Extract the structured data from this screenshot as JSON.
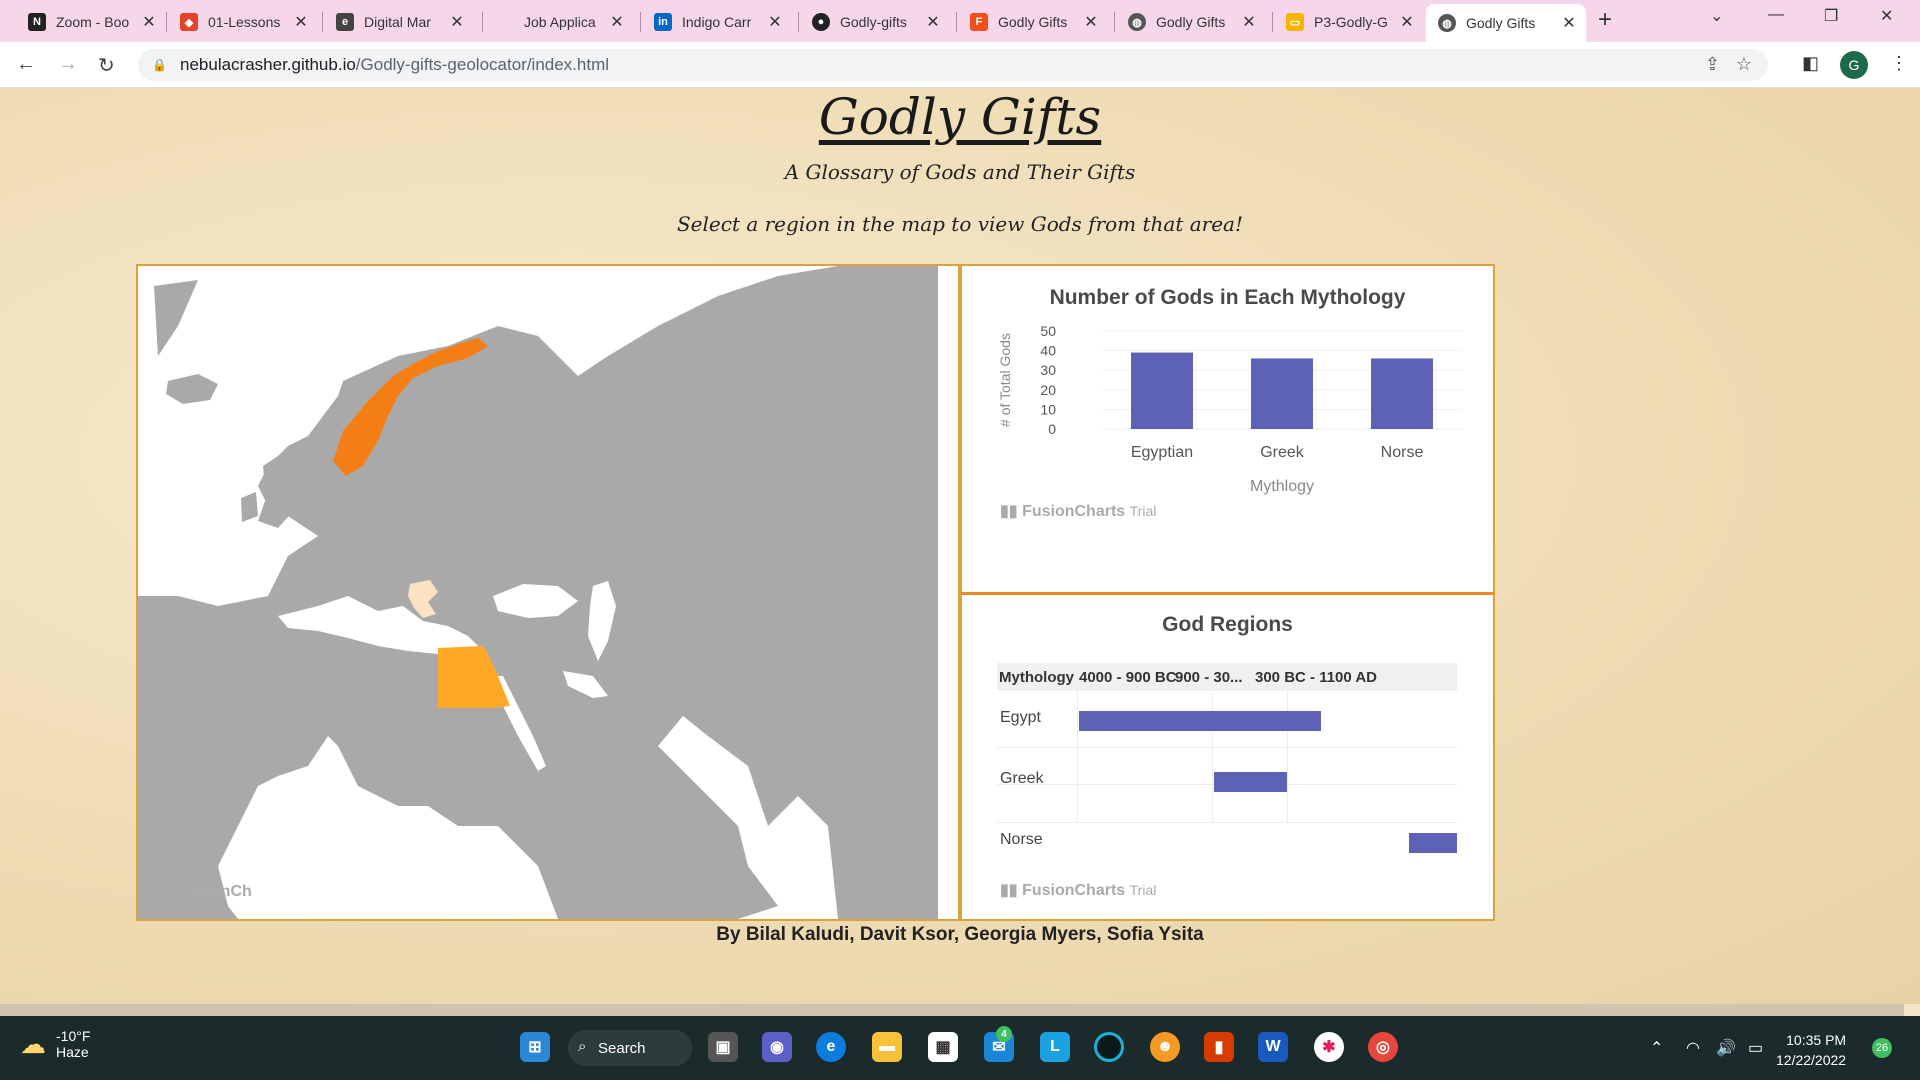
{
  "browser": {
    "tabs": [
      {
        "title": "Zoom - Boo",
        "icon": "notion-icon",
        "color": "#222222"
      },
      {
        "title": "01-Lessons",
        "icon": "gitlab-icon",
        "color": "#e24329"
      },
      {
        "title": "Digital Mar",
        "icon": "edx-icon",
        "color": "#444444"
      },
      {
        "title": "Job Applica",
        "icon": "blank-page-icon",
        "color": "#bbbbbb"
      },
      {
        "title": "Indigo Carr",
        "icon": "linkedin-icon",
        "color": "#0a66c2"
      },
      {
        "title": "Godly-gifts",
        "icon": "github-icon",
        "color": "#222222"
      },
      {
        "title": "Godly Gifts",
        "icon": "figma-icon",
        "color": "#f24e1e"
      },
      {
        "title": "Godly Gifts",
        "icon": "globe-icon",
        "color": "#555555"
      },
      {
        "title": "P3-Godly-G",
        "icon": "google-slides-icon",
        "color": "#f4b400"
      },
      {
        "title": "Godly Gifts",
        "icon": "globe-icon",
        "color": "#555555"
      }
    ],
    "active_tab_index": 9,
    "url_host": "nebulacrasher.github.io",
    "url_path": "/Godly-gifts-geolocator/index.html",
    "profile_initial": "G"
  },
  "page": {
    "title": "Godly Gifts",
    "subtitle": "A Glossary of Gods and Their Gifts",
    "instruction": "Select a region in the map to view Gods from that area!",
    "map_logo": "FusionCh",
    "credits": "By Bilal Kaludi, Davit Ksor, Georgia Myers, Sofia Ysita"
  },
  "chart_data": [
    {
      "type": "bar",
      "title": "Number of Gods in Each Mythology",
      "categories": [
        "Egyptian",
        "Greek",
        "Norse"
      ],
      "values": [
        39,
        36,
        36
      ],
      "xlabel": "Mythlogy",
      "ylabel": "# of Total Gods",
      "ylim": [
        0,
        50
      ],
      "yticks": [
        0,
        10,
        20,
        30,
        40,
        50
      ],
      "color": "#5d62b5",
      "logo": "FusionCharts",
      "logo_suffix": "Trial"
    }
  ],
  "gantt": {
    "title": "God Regions",
    "header_label": "Mythology",
    "periods": [
      "4000 - 900 BC",
      "900 - 30...",
      "300 BC - 1100 AD"
    ],
    "rows": [
      {
        "label": "Egypt"
      },
      {
        "label": "Greek"
      },
      {
        "label": "Norse"
      }
    ],
    "color": "#5d62b5",
    "logo": "FusionCharts",
    "logo_suffix": "Trial"
  },
  "map": {
    "highlight_norway": "#f57f17",
    "highlight_egypt": "#ffa726",
    "highlight_greece": "#fbe3c2",
    "land": "#a9a9a9",
    "water": "#ffffff"
  },
  "taskbar": {
    "temperature": "-10°F",
    "condition": "Haze",
    "search_label": "Search",
    "time": "10:35 PM",
    "date": "12/22/2022",
    "notifications": "26",
    "mail_badge": "4"
  }
}
